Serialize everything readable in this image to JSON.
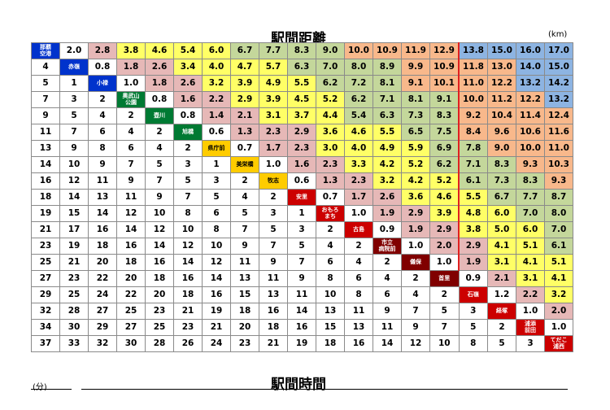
{
  "title_distance": "駅間距離",
  "title_time": "駅間時間",
  "unit_km": "(km)",
  "unit_min": "(分)",
  "colors": {
    "white": "#ffffff",
    "pink": "#e6b8b7",
    "yellow": "#ffff66",
    "green": "#c4d79b",
    "orange": "#f8b88b",
    "blue": "#8db4e2",
    "station_blue": "#0033cc",
    "station_green": "#007a33",
    "station_yellow": "#ffcc00",
    "station_red": "#cc0000",
    "station_darkred": "#800000",
    "divider_red": "#e02020"
  },
  "rows": [
    {
      "station": "那覇\n空港",
      "station_color": "station_blue",
      "times": [],
      "distances": [
        "2.0",
        "2.8",
        "3.8",
        "4.6",
        "5.4",
        "6.0",
        "6.7",
        "7.7",
        "8.3",
        "9.0",
        "10.0",
        "10.9",
        "11.9",
        "12.9",
        "13.8",
        "15.0",
        "16.0",
        "17.0"
      ],
      "dist_colors": [
        "white",
        "pink",
        "yellow",
        "yellow",
        "yellow",
        "yellow",
        "green",
        "green",
        "green",
        "green",
        "orange",
        "orange",
        "orange",
        "orange",
        "blue",
        "blue",
        "blue",
        "blue"
      ]
    },
    {
      "station": "赤嶺",
      "station_color": "station_blue",
      "times": [
        "4"
      ],
      "distances": [
        "0.8",
        "1.8",
        "2.6",
        "3.4",
        "4.0",
        "4.7",
        "5.7",
        "6.3",
        "7.0",
        "8.0",
        "8.9",
        "9.9",
        "10.9",
        "11.8",
        "13.0",
        "14.0",
        "15.0"
      ],
      "dist_colors": [
        "white",
        "pink",
        "pink",
        "yellow",
        "yellow",
        "yellow",
        "yellow",
        "green",
        "green",
        "green",
        "green",
        "orange",
        "orange",
        "orange",
        "orange",
        "blue",
        "blue"
      ]
    },
    {
      "station": "小禄",
      "station_color": "station_blue",
      "times": [
        "5",
        "1"
      ],
      "distances": [
        "1.0",
        "1.8",
        "2.6",
        "3.2",
        "3.9",
        "4.9",
        "5.5",
        "6.2",
        "7.2",
        "8.1",
        "9.1",
        "10.1",
        "11.0",
        "12.2",
        "13.2",
        "14.2"
      ],
      "dist_colors": [
        "white",
        "pink",
        "pink",
        "yellow",
        "yellow",
        "yellow",
        "yellow",
        "green",
        "green",
        "green",
        "orange",
        "orange",
        "orange",
        "orange",
        "blue",
        "blue"
      ]
    },
    {
      "station": "奥武山\n公園",
      "station_color": "station_green",
      "times": [
        "7",
        "3",
        "2"
      ],
      "distances": [
        "0.8",
        "1.6",
        "2.2",
        "2.9",
        "3.9",
        "4.5",
        "5.2",
        "6.2",
        "7.1",
        "8.1",
        "9.1",
        "10.0",
        "11.2",
        "12.2",
        "13.2"
      ],
      "dist_colors": [
        "white",
        "pink",
        "pink",
        "yellow",
        "yellow",
        "yellow",
        "yellow",
        "green",
        "green",
        "green",
        "green",
        "orange",
        "orange",
        "orange",
        "blue"
      ]
    },
    {
      "station": "壺川",
      "station_color": "station_green",
      "times": [
        "9",
        "5",
        "4",
        "2"
      ],
      "distances": [
        "0.8",
        "1.4",
        "2.1",
        "3.1",
        "3.7",
        "4.4",
        "5.4",
        "6.3",
        "7.3",
        "8.3",
        "9.2",
        "10.4",
        "11.4",
        "12.4"
      ],
      "dist_colors": [
        "white",
        "pink",
        "pink",
        "yellow",
        "yellow",
        "yellow",
        "green",
        "green",
        "green",
        "green",
        "orange",
        "orange",
        "orange",
        "orange"
      ]
    },
    {
      "station": "旭橋",
      "station_color": "station_green",
      "times": [
        "11",
        "7",
        "6",
        "4",
        "2"
      ],
      "distances": [
        "0.6",
        "1.3",
        "2.3",
        "2.9",
        "3.6",
        "4.6",
        "5.5",
        "6.5",
        "7.5",
        "8.4",
        "9.6",
        "10.6",
        "11.6"
      ],
      "dist_colors": [
        "white",
        "pink",
        "pink",
        "pink",
        "yellow",
        "yellow",
        "yellow",
        "green",
        "green",
        "orange",
        "orange",
        "orange",
        "orange"
      ]
    },
    {
      "station": "県庁前",
      "station_color": "station_yellow",
      "times": [
        "13",
        "9",
        "8",
        "6",
        "4",
        "2"
      ],
      "distances": [
        "0.7",
        "1.7",
        "2.3",
        "3.0",
        "4.0",
        "4.9",
        "5.9",
        "6.9",
        "7.8",
        "9.0",
        "10.0",
        "11.0"
      ],
      "dist_colors": [
        "white",
        "pink",
        "pink",
        "yellow",
        "yellow",
        "yellow",
        "yellow",
        "green",
        "green",
        "orange",
        "orange",
        "orange"
      ]
    },
    {
      "station": "美栄橋",
      "station_color": "station_yellow",
      "times": [
        "14",
        "10",
        "9",
        "7",
        "5",
        "3",
        "1"
      ],
      "distances": [
        "1.0",
        "1.6",
        "2.3",
        "3.3",
        "4.2",
        "5.2",
        "6.2",
        "7.1",
        "8.3",
        "9.3",
        "10.3"
      ],
      "dist_colors": [
        "white",
        "pink",
        "pink",
        "yellow",
        "yellow",
        "yellow",
        "green",
        "green",
        "green",
        "orange",
        "orange"
      ]
    },
    {
      "station": "牧志",
      "station_color": "station_yellow",
      "times": [
        "16",
        "12",
        "11",
        "9",
        "7",
        "5",
        "3",
        "2"
      ],
      "distances": [
        "0.6",
        "1.3",
        "2.3",
        "3.2",
        "4.2",
        "5.2",
        "6.1",
        "7.3",
        "8.3",
        "9.3"
      ],
      "dist_colors": [
        "white",
        "pink",
        "pink",
        "yellow",
        "yellow",
        "yellow",
        "green",
        "green",
        "green",
        "orange"
      ]
    },
    {
      "station": "安里",
      "station_color": "station_red",
      "times": [
        "18",
        "14",
        "13",
        "11",
        "9",
        "7",
        "5",
        "4",
        "2"
      ],
      "distances": [
        "0.7",
        "1.7",
        "2.6",
        "3.6",
        "4.6",
        "5.5",
        "6.7",
        "7.7",
        "8.7"
      ],
      "dist_colors": [
        "white",
        "pink",
        "pink",
        "yellow",
        "yellow",
        "yellow",
        "green",
        "green",
        "green"
      ]
    },
    {
      "station": "おもろ\nまち",
      "station_color": "station_red",
      "times": [
        "19",
        "15",
        "14",
        "12",
        "10",
        "8",
        "6",
        "5",
        "3",
        "1"
      ],
      "distances": [
        "1.0",
        "1.9",
        "2.9",
        "3.9",
        "4.8",
        "6.0",
        "7.0",
        "8.0"
      ],
      "dist_colors": [
        "white",
        "pink",
        "pink",
        "yellow",
        "yellow",
        "yellow",
        "green",
        "green"
      ]
    },
    {
      "station": "古島",
      "station_color": "station_red",
      "times": [
        "21",
        "17",
        "16",
        "14",
        "12",
        "10",
        "8",
        "7",
        "5",
        "3",
        "2"
      ],
      "distances": [
        "0.9",
        "1.9",
        "2.9",
        "3.8",
        "5.0",
        "6.0",
        "7.0"
      ],
      "dist_colors": [
        "white",
        "pink",
        "pink",
        "yellow",
        "yellow",
        "yellow",
        "green"
      ]
    },
    {
      "station": "市立\n病院前",
      "station_color": "station_darkred",
      "times": [
        "23",
        "19",
        "18",
        "16",
        "14",
        "12",
        "10",
        "9",
        "7",
        "5",
        "4",
        "2"
      ],
      "distances": [
        "1.0",
        "2.0",
        "2.9",
        "4.1",
        "5.1",
        "6.1"
      ],
      "dist_colors": [
        "white",
        "pink",
        "pink",
        "yellow",
        "yellow",
        "green"
      ]
    },
    {
      "station": "儀保",
      "station_color": "station_darkred",
      "times": [
        "25",
        "21",
        "20",
        "18",
        "16",
        "14",
        "12",
        "11",
        "9",
        "7",
        "6",
        "4",
        "2"
      ],
      "distances": [
        "1.0",
        "1.9",
        "3.1",
        "4.1",
        "5.1"
      ],
      "dist_colors": [
        "white",
        "pink",
        "yellow",
        "yellow",
        "yellow"
      ]
    },
    {
      "station": "首里",
      "station_color": "station_darkred",
      "times": [
        "27",
        "23",
        "22",
        "20",
        "18",
        "16",
        "14",
        "13",
        "11",
        "9",
        "8",
        "6",
        "4",
        "2"
      ],
      "distances": [
        "0.9",
        "2.1",
        "3.1",
        "4.1"
      ],
      "dist_colors": [
        "white",
        "pink",
        "yellow",
        "yellow"
      ]
    },
    {
      "station": "石嶺",
      "station_color": "station_red",
      "times": [
        "29",
        "25",
        "24",
        "22",
        "20",
        "18",
        "16",
        "15",
        "13",
        "11",
        "10",
        "8",
        "6",
        "4",
        "2"
      ],
      "distances": [
        "1.2",
        "2.2",
        "3.2"
      ],
      "dist_colors": [
        "white",
        "pink",
        "yellow"
      ]
    },
    {
      "station": "経塚",
      "station_color": "station_red",
      "times": [
        "32",
        "28",
        "27",
        "25",
        "23",
        "21",
        "19",
        "18",
        "16",
        "14",
        "13",
        "11",
        "9",
        "7",
        "5",
        "3"
      ],
      "distances": [
        "1.0",
        "2.0"
      ],
      "dist_colors": [
        "white",
        "pink"
      ]
    },
    {
      "station": "浦添\n前田",
      "station_color": "station_red",
      "times": [
        "34",
        "30",
        "29",
        "27",
        "25",
        "23",
        "21",
        "20",
        "18",
        "16",
        "15",
        "13",
        "11",
        "9",
        "7",
        "5",
        "2"
      ],
      "distances": [
        "1.0"
      ],
      "dist_colors": [
        "white"
      ]
    },
    {
      "station": "てだこ\n浦西",
      "station_color": "station_red",
      "times": [
        "37",
        "33",
        "32",
        "30",
        "28",
        "26",
        "24",
        "23",
        "21",
        "19",
        "18",
        "16",
        "14",
        "12",
        "10",
        "8",
        "5",
        "3"
      ],
      "distances": [],
      "dist_colors": []
    }
  ]
}
